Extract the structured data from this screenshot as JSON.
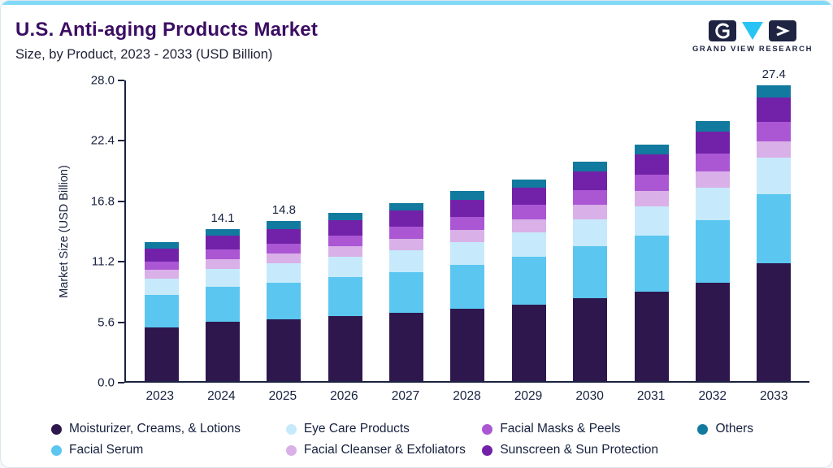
{
  "card": {
    "accent_color": "#7fd9f7"
  },
  "header": {
    "title": "U.S. Anti-aging Products Market",
    "subtitle": "Size, by Product, 2023 - 2033 (USD Billion)"
  },
  "logo": {
    "text": "GRAND VIEW RESEARCH"
  },
  "colors": {
    "axis": "#1b2240",
    "title": "#3c0e63",
    "logo_navy": "#1e2442",
    "logo_cyan": "#29c4f3"
  },
  "chart_data": {
    "type": "bar",
    "stacked": true,
    "title": "U.S. Anti-aging Products Market Size, by Product, 2023 - 2033 (USD Billion)",
    "xlabel": "",
    "ylabel": "Market Size (USD Billion)",
    "ylim": [
      0,
      28
    ],
    "yticks": [
      0,
      5.6,
      11.2,
      16.8,
      22.4,
      28
    ],
    "grid": false,
    "legend_position": "bottom",
    "categories": [
      "2023",
      "2024",
      "2025",
      "2026",
      "2027",
      "2028",
      "2029",
      "2030",
      "2031",
      "2032",
      "2033"
    ],
    "bar_labels": {
      "2024": "14.1",
      "2025": "14.8",
      "2033": "27.4"
    },
    "series": [
      {
        "name": "Moisturizer, Creams, & Lotions",
        "color": "#2e174d",
        "values": [
          5.0,
          5.5,
          5.7,
          6.0,
          6.3,
          6.7,
          7.1,
          7.7,
          8.3,
          9.1,
          10.9
        ]
      },
      {
        "name": "Facial Serum",
        "color": "#5bc6f0",
        "values": [
          3.0,
          3.2,
          3.4,
          3.6,
          3.8,
          4.1,
          4.4,
          4.8,
          5.2,
          5.8,
          6.4
        ]
      },
      {
        "name": "Eye Care Products",
        "color": "#c6eafb",
        "values": [
          1.5,
          1.7,
          1.8,
          1.9,
          2.0,
          2.1,
          2.3,
          2.5,
          2.7,
          3.0,
          3.4
        ]
      },
      {
        "name": "Facial Cleanser & Exfoliators",
        "color": "#d9b0e8",
        "values": [
          0.8,
          0.9,
          0.9,
          1.0,
          1.1,
          1.1,
          1.2,
          1.3,
          1.4,
          1.5,
          1.5
        ]
      },
      {
        "name": "Facial Masks & Peels",
        "color": "#ab57d4",
        "values": [
          0.8,
          0.9,
          0.9,
          1.0,
          1.1,
          1.2,
          1.3,
          1.4,
          1.5,
          1.7,
          1.8
        ]
      },
      {
        "name": "Sunscreen & Sun Protection",
        "color": "#7222a8",
        "values": [
          1.2,
          1.3,
          1.4,
          1.4,
          1.5,
          1.6,
          1.6,
          1.7,
          1.9,
          2.0,
          2.3
        ]
      },
      {
        "name": "Others",
        "color": "#117a9e",
        "values": [
          0.6,
          0.6,
          0.7,
          0.7,
          0.7,
          0.8,
          0.8,
          0.9,
          0.9,
          1.0,
          1.1
        ]
      }
    ],
    "legend_order": [
      "Moisturizer, Creams, & Lotions",
      "Eye Care Products",
      "Facial Masks & Peels",
      "Others",
      "Facial Serum",
      "Facial Cleanser & Exfoliators",
      "Sunscreen & Sun Protection"
    ]
  }
}
